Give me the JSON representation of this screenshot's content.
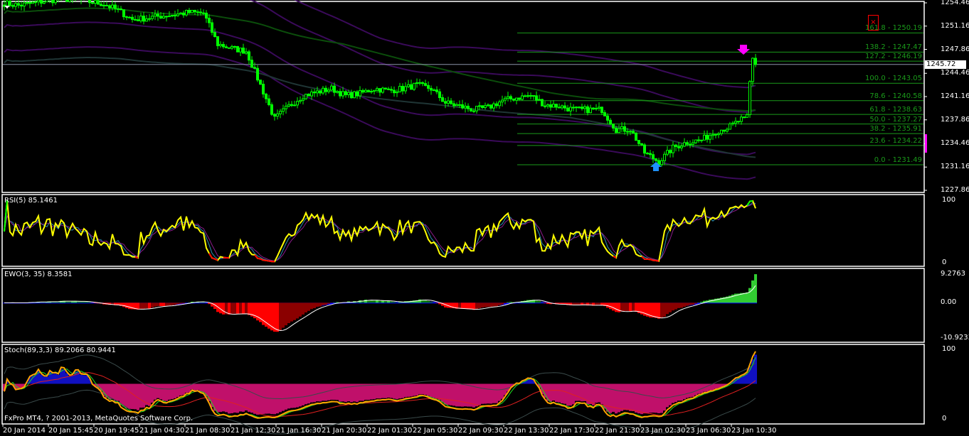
{
  "platform_text": "FxPro MT4, ? 2001-2013, MetaQuotes Software Corp.",
  "current_price": "1245.72",
  "colors": {
    "candle": "#00ff00",
    "fib": "#1a9a1a",
    "rsi": "#ffff00",
    "ewo_up": "#32cd32",
    "ewo_down": "#ff0000",
    "stoch_main": "#ffa500",
    "arrow_up": "#1e90ff",
    "arrow_down": "#ff00ff",
    "close_button": "#ff0000"
  },
  "icons": {
    "close": "close-x-icon",
    "menu": "triangle-down-icon",
    "buy": "arrow-up-icon",
    "sell": "arrow-down-icon"
  },
  "chart_data": [
    {
      "type": "candlestick",
      "timeframe_minutes": 15,
      "price_axis_labels": [
        "1254.46",
        "1251.16",
        "1247.86",
        "1244.46",
        "1241.16",
        "1237.86",
        "1234.46",
        "1231.16",
        "1227.86"
      ],
      "ylim": [
        1227.86,
        1254.46
      ],
      "time_labels": [
        "20 Jan 2014",
        "20 Jan 15:45",
        "20 Jan 19:45",
        "21 Jan 04:30",
        "21 Jan 08:30",
        "21 Jan 12:30",
        "21 Jan 16:30",
        "21 Jan 20:30",
        "22 Jan 01:30",
        "22 Jan 05:30",
        "22 Jan 09:30",
        "22 Jan 13:30",
        "22 Jan 17:30",
        "22 Jan 21:30",
        "23 Jan 02:30",
        "23 Jan 06:30",
        "23 Jan 10:30"
      ],
      "approx_close_every_5_bars": [
        1254.4,
        1254.1,
        1254.4,
        1254.8,
        1255.0,
        1255.0,
        1254.6,
        1254.3,
        1253.4,
        1252.1,
        1252.3,
        1252.6,
        1252.8,
        1253.1,
        1253.0,
        1248.6,
        1248.0,
        1247.6,
        1242.8,
        1238.0,
        1239.8,
        1241.3,
        1241.8,
        1242.3,
        1241.3,
        1241.6,
        1242.3,
        1242.0,
        1242.3,
        1242.8,
        1242.3,
        1240.3,
        1239.8,
        1239.3,
        1239.6,
        1240.6,
        1241.0,
        1241.3,
        1240.0,
        1239.8,
        1239.3,
        1239.3,
        1239.3,
        1236.5,
        1236.5,
        1233.2,
        1231.9,
        1233.9,
        1234.7,
        1235.0,
        1236.2,
        1236.9,
        1238.2
      ],
      "last_closes": [
        1238.6,
        1243.3,
        1246.6,
        1245.72
      ],
      "fibonacci": [
        {
          "level": "161.8",
          "price": "1250.19"
        },
        {
          "level": "138.2",
          "price": "1247.47"
        },
        {
          "level": "127.2",
          "price": "1246.19"
        },
        {
          "level": "100.0",
          "price": "1243.05"
        },
        {
          "level": "78.6",
          "price": "1240.58"
        },
        {
          "level": "61.8",
          "price": "1238.63"
        },
        {
          "level": "50.0",
          "price": "1237.27"
        },
        {
          "level": "38.2",
          "price": "1235.91"
        },
        {
          "level": "23.6",
          "price": "1234.22"
        },
        {
          "level": "0.0",
          "price": "1231.49"
        }
      ]
    },
    {
      "type": "line",
      "title": "RSI(5) 85.1461",
      "ylim": [
        0,
        100
      ],
      "axis_labels": [
        "100",
        "0"
      ]
    },
    {
      "type": "bar",
      "title": "EWO(3, 35) 8.3581",
      "ylim": [
        -10.9233,
        9.2763
      ],
      "axis_labels": [
        "9.2763",
        "0.00",
        "-10.9233"
      ]
    },
    {
      "type": "line",
      "title": "Stoch(89,3,3) 89.2066 80.9441",
      "ylim": [
        0,
        100
      ],
      "axis_labels": [
        "100",
        "0"
      ]
    }
  ]
}
